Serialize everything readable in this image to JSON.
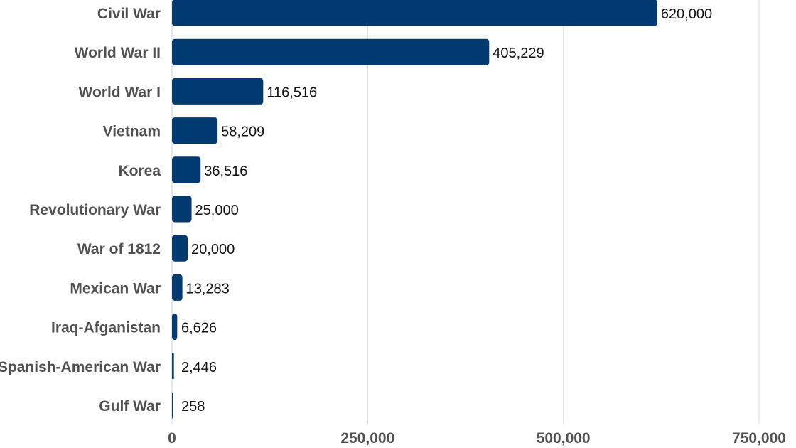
{
  "chart_data": {
    "type": "bar",
    "orientation": "horizontal",
    "title": "",
    "xlabel": "",
    "ylabel": "",
    "categories": [
      "Civil War",
      "World War II",
      "World War I",
      "Vietnam",
      "Korea",
      "Revolutionary War",
      "War of 1812",
      "Mexican War",
      "Iraq-Afganistan",
      "Spanish-American War",
      "Gulf War"
    ],
    "values": [
      620000,
      405229,
      116516,
      58209,
      36516,
      25000,
      20000,
      13283,
      6626,
      2446,
      258
    ],
    "value_labels": [
      "620,000",
      "405,229",
      "116,516",
      "58,209",
      "36,516",
      "25,000",
      "20,000",
      "13,283",
      "6,626",
      "2,446",
      "258"
    ],
    "xlim": [
      0,
      750000
    ],
    "ticks": [
      0,
      250000,
      500000,
      750000
    ],
    "tick_labels": [
      "0",
      "250,000",
      "500,000",
      "750,000"
    ],
    "grid": true,
    "bar_color": "#003a70",
    "legend": "none"
  }
}
